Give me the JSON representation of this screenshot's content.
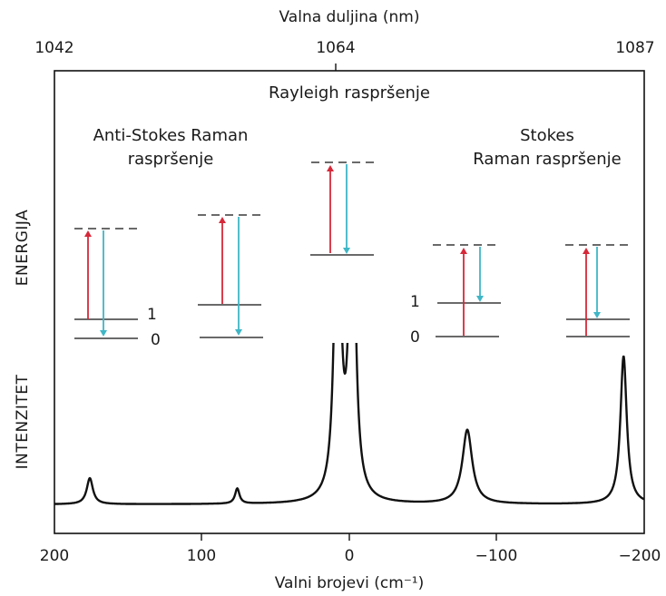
{
  "top_axis": {
    "title": "Valna duljina (nm)",
    "ticks": [
      "1042",
      "1064",
      "1087"
    ]
  },
  "bottom_axis": {
    "title": "Valni brojevi (cm⁻¹)",
    "ticks": [
      "200",
      "100",
      "0",
      "−100",
      "−200"
    ],
    "range": [
      200,
      -200
    ]
  },
  "side_labels": {
    "energy": "ENERGIJA",
    "intensity": "INTENZITET"
  },
  "headings": {
    "rayleigh": "Rayleigh raspršenje",
    "anti_stokes_line1": "Anti-Stokes Raman",
    "anti_stokes_line2": "raspršenje",
    "stokes_line1": "Stokes",
    "stokes_line2": "Raman raspršenje"
  },
  "level_labels": {
    "left_upper": "1",
    "left_lower": "0",
    "right_upper": "1",
    "right_lower": "0"
  },
  "colors": {
    "excitation_arrow": "#d62839",
    "emission_arrow": "#3fb6c6",
    "lines": "#111111"
  },
  "spectrum": {
    "peaks": [
      {
        "shift": 176,
        "height": 0.12,
        "width": 2.5
      },
      {
        "shift": 76,
        "height": 0.07,
        "width": 1.8
      },
      {
        "shift": 8,
        "height": 1.6,
        "width": 2.4
      },
      {
        "shift": -2,
        "height": 1.6,
        "width": 2.4
      },
      {
        "shift": -80,
        "height": 0.34,
        "width": 4.0
      },
      {
        "shift": -186,
        "height": 0.68,
        "width": 2.6
      }
    ]
  }
}
